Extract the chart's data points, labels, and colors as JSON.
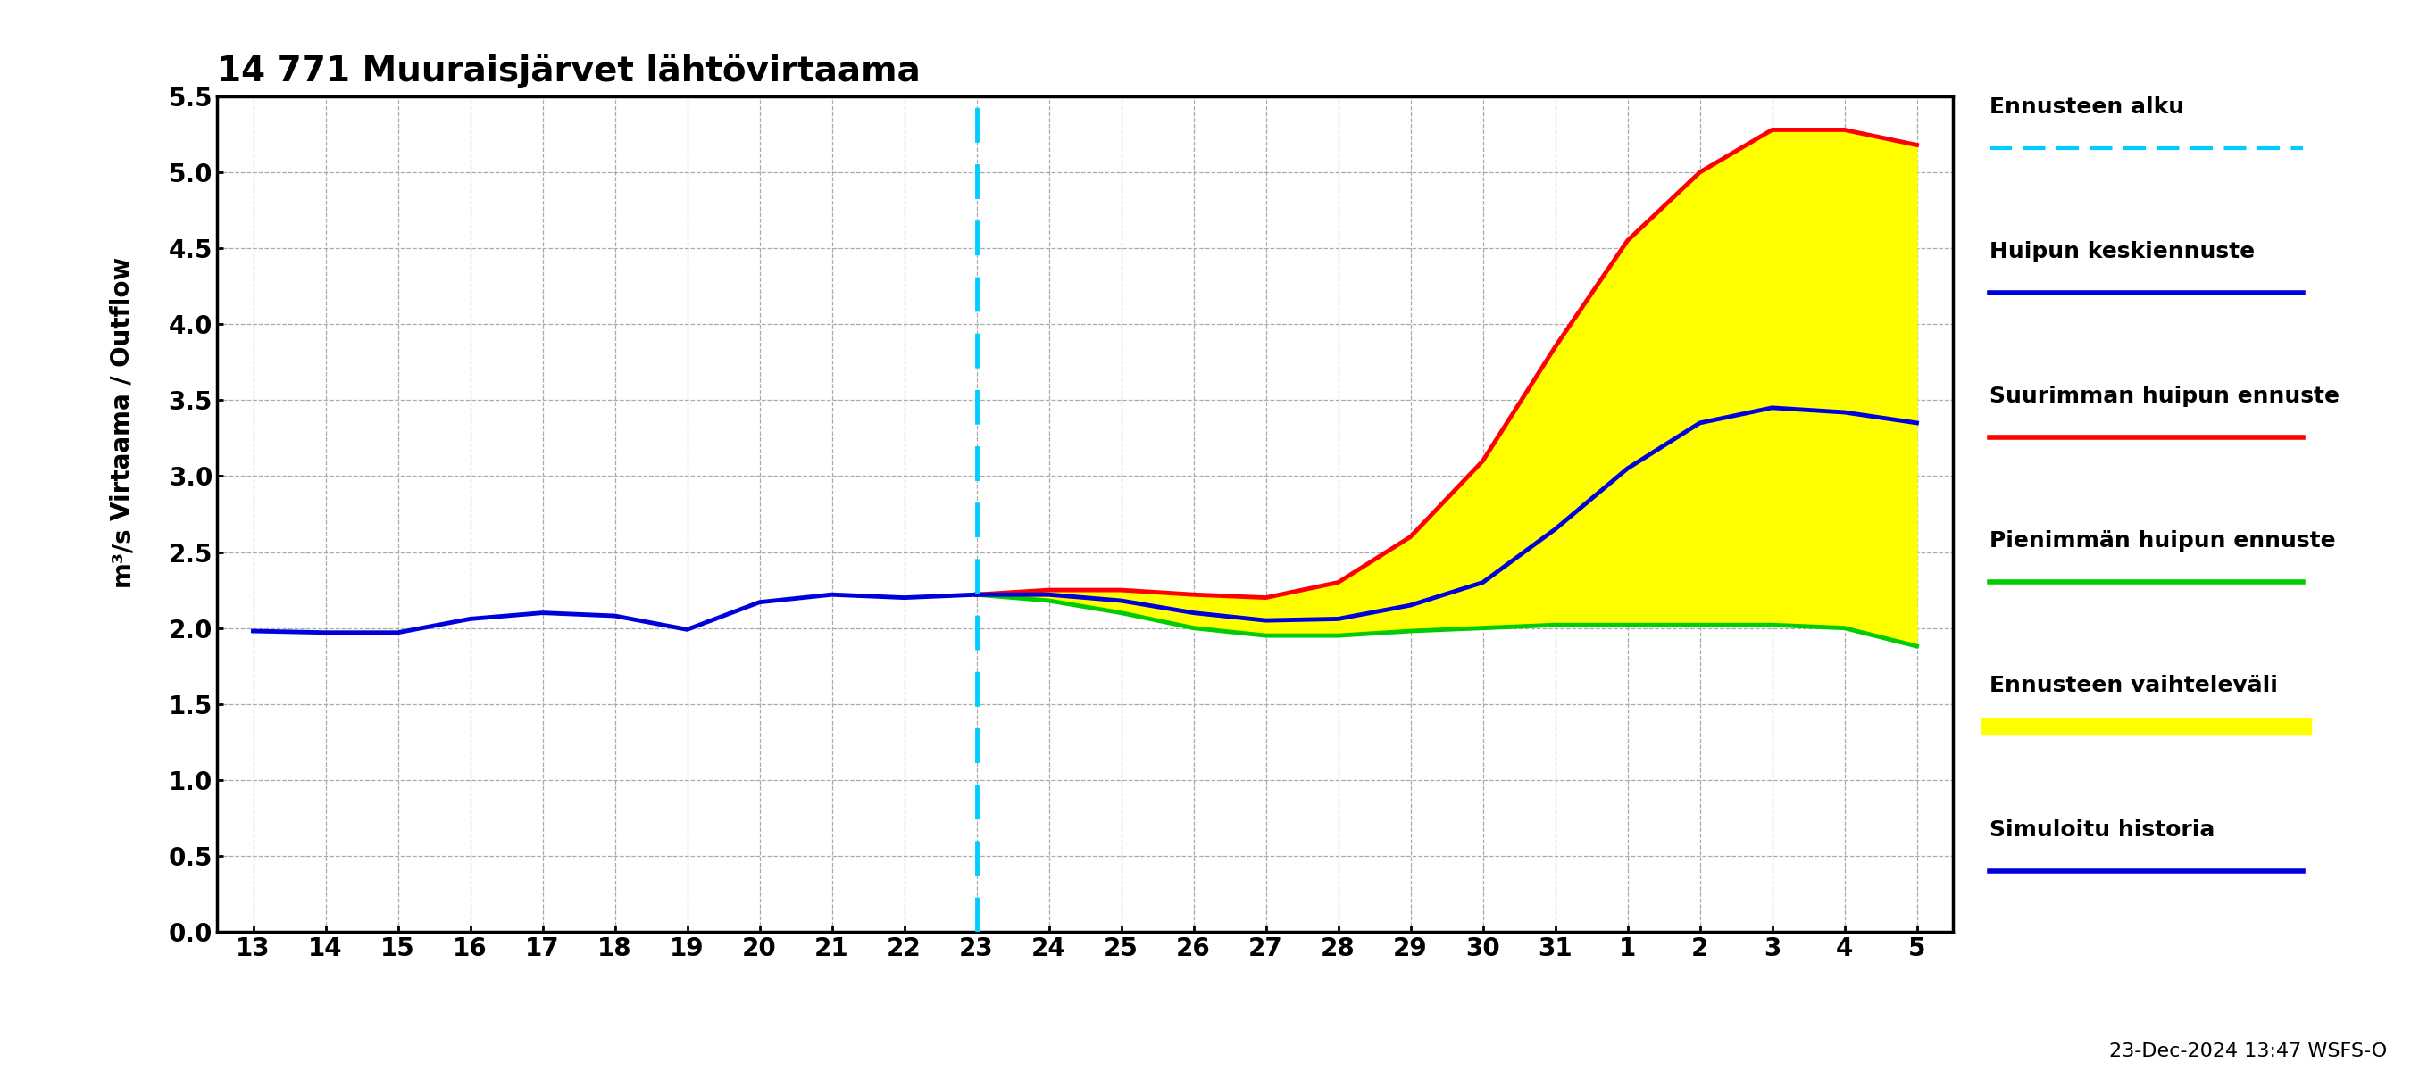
{
  "title": "14 771 Muuraisjärvet lähtövirtaama",
  "ylabel1": "Virtaama / Outflow",
  "ylabel2": "m³/s",
  "footnote": "23-Dec-2024 13:47 WSFS-O",
  "history_color": "#0000dd",
  "mean_forecast_color": "#0000dd",
  "max_forecast_color": "#ff0000",
  "min_forecast_color": "#00cc00",
  "fill_color": "#ffff00",
  "forecast_line_color": "#00ccff",
  "background_color": "#ffffff",
  "grid_color": "#aaaaaa",
  "ylim": [
    0.0,
    5.5
  ],
  "yticks": [
    0.0,
    0.5,
    1.0,
    1.5,
    2.0,
    2.5,
    3.0,
    3.5,
    4.0,
    4.5,
    5.0,
    5.5
  ],
  "legend_labels": [
    "Ennusteen alku",
    "Huipun keskiennuste",
    "Suurimman huipun ennuste",
    "Pienimmän huipun ennuste",
    "Ennusteen vaihteleväli",
    "Simuloitu historia"
  ],
  "history_x": [
    0,
    1,
    2,
    3,
    4,
    5,
    6,
    7,
    8,
    9,
    10
  ],
  "history_y": [
    1.98,
    1.97,
    1.97,
    2.06,
    2.1,
    2.08,
    1.99,
    2.17,
    2.22,
    2.2,
    2.22
  ],
  "forecast_x": [
    10,
    11,
    12,
    13,
    14,
    15,
    16,
    17,
    18,
    19,
    20,
    21,
    22,
    23
  ],
  "mean_y": [
    2.22,
    2.22,
    2.18,
    2.1,
    2.05,
    2.06,
    2.15,
    2.3,
    2.65,
    3.05,
    3.35,
    3.45,
    3.42,
    3.35
  ],
  "max_y": [
    2.22,
    2.25,
    2.25,
    2.22,
    2.2,
    2.3,
    2.6,
    3.1,
    3.85,
    4.55,
    5.0,
    5.28,
    5.28,
    5.18
  ],
  "min_y": [
    2.22,
    2.18,
    2.1,
    2.0,
    1.95,
    1.95,
    1.98,
    2.0,
    2.02,
    2.02,
    2.02,
    2.02,
    2.0,
    1.88
  ]
}
